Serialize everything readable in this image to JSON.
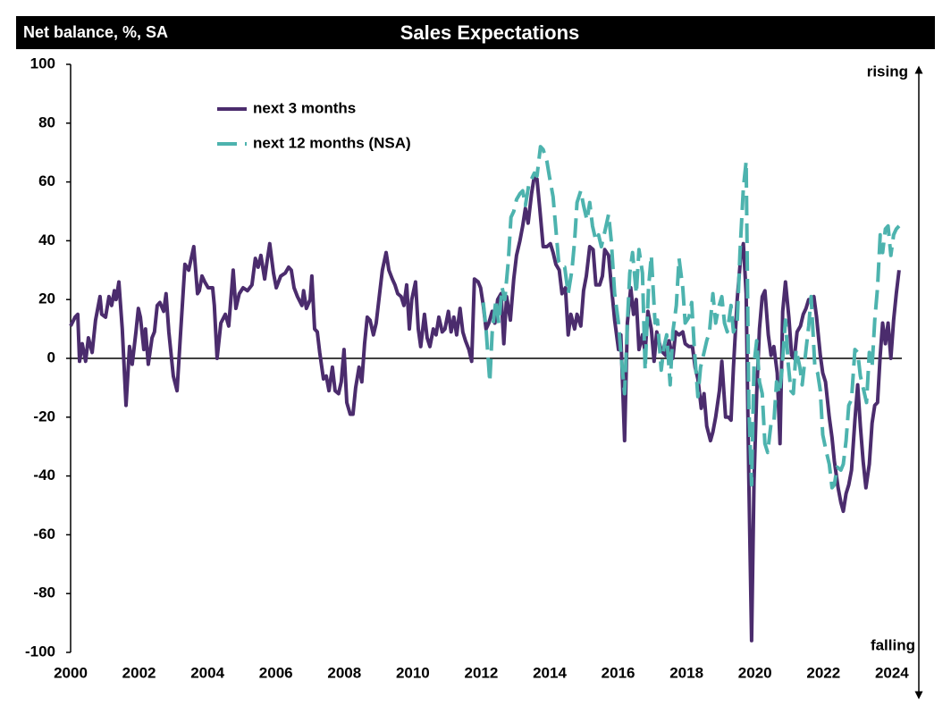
{
  "chart_data": {
    "type": "line",
    "title": "Sales Expectations",
    "ylabel": "Net balance, %, SA",
    "annotations": {
      "top": "rising",
      "bottom": "falling"
    },
    "xlim": [
      2000,
      2024.5
    ],
    "ylim": [
      -100,
      100
    ],
    "xticks": [
      2000,
      2002,
      2004,
      2006,
      2008,
      2010,
      2012,
      2014,
      2016,
      2018,
      2020,
      2022,
      2024
    ],
    "yticks": [
      -100,
      -80,
      -60,
      -40,
      -20,
      0,
      20,
      40,
      60,
      80,
      100
    ],
    "series": [
      {
        "name": "next 3 months",
        "color": "#4b2c6d",
        "dashed": false,
        "x": [
          2000.0,
          2000.13,
          2000.21,
          2000.26,
          2000.34,
          2000.44,
          2000.52,
          2000.63,
          2000.73,
          2000.86,
          2000.91,
          2001.02,
          2001.12,
          2001.2,
          2001.28,
          2001.33,
          2001.41,
          2001.51,
          2001.62,
          2001.72,
          2001.8,
          2001.91,
          2001.98,
          2002.04,
          2002.14,
          2002.19,
          2002.27,
          2002.38,
          2002.45,
          2002.53,
          2002.61,
          2002.72,
          2002.79,
          2002.87,
          2003.0,
          2003.11,
          2003.21,
          2003.34,
          2003.45,
          2003.6,
          2003.71,
          2003.76,
          2003.84,
          2003.92,
          2004.02,
          2004.15,
          2004.2,
          2004.28,
          2004.39,
          2004.52,
          2004.62,
          2004.75,
          2004.83,
          2004.93,
          2005.04,
          2005.17,
          2005.3,
          2005.4,
          2005.48,
          2005.56,
          2005.67,
          2005.74,
          2005.82,
          2005.93,
          2006.01,
          2006.14,
          2006.27,
          2006.37,
          2006.45,
          2006.53,
          2006.63,
          2006.76,
          2006.81,
          2006.89,
          2007.0,
          2007.05,
          2007.13,
          2007.21,
          2007.28,
          2007.39,
          2007.47,
          2007.55,
          2007.65,
          2007.73,
          2007.83,
          2007.91,
          2007.99,
          2008.07,
          2008.17,
          2008.25,
          2008.33,
          2008.43,
          2008.51,
          2008.59,
          2008.67,
          2008.75,
          2008.85,
          2008.93,
          2009.03,
          2009.11,
          2009.22,
          2009.3,
          2009.4,
          2009.48,
          2009.56,
          2009.66,
          2009.74,
          2009.82,
          2009.9,
          2009.97,
          2010.08,
          2010.16,
          2010.23,
          2010.34,
          2010.42,
          2010.5,
          2010.6,
          2010.68,
          2010.76,
          2010.86,
          2010.94,
          2011.04,
          2011.12,
          2011.2,
          2011.28,
          2011.38,
          2011.46,
          2011.54,
          2011.64,
          2011.72,
          2011.8,
          2011.91,
          2011.98,
          2012.06,
          2012.14,
          2012.22,
          2012.32,
          2012.4,
          2012.48,
          2012.58,
          2012.66,
          2012.74,
          2012.85,
          2012.95,
          2013.03,
          2013.13,
          2013.21,
          2013.29,
          2013.37,
          2013.47,
          2013.55,
          2013.63,
          2013.71,
          2013.81,
          2013.92,
          2014.02,
          2014.1,
          2014.18,
          2014.28,
          2014.36,
          2014.46,
          2014.54,
          2014.62,
          2014.73,
          2014.8,
          2014.91,
          2014.99,
          2015.07,
          2015.17,
          2015.27,
          2015.35,
          2015.46,
          2015.54,
          2015.61,
          2015.72,
          2015.8,
          2015.9,
          2016.01,
          2016.08,
          2016.19,
          2016.27,
          2016.37,
          2016.45,
          2016.53,
          2016.61,
          2016.71,
          2016.79,
          2016.87,
          2016.97,
          2017.05,
          2017.13,
          2017.23,
          2017.31,
          2017.39,
          2017.49,
          2017.6,
          2017.68,
          2017.78,
          2017.89,
          2017.96,
          2018.07,
          2018.17,
          2018.25,
          2018.33,
          2018.43,
          2018.51,
          2018.59,
          2018.7,
          2018.77,
          2018.85,
          2018.96,
          2019.03,
          2019.14,
          2019.22,
          2019.3,
          2019.37,
          2019.48,
          2019.58,
          2019.66,
          2019.74,
          2019.82,
          2019.9,
          2019.97,
          2020.05,
          2020.13,
          2020.21,
          2020.29,
          2020.39,
          2020.47,
          2020.55,
          2020.65,
          2020.73,
          2020.81,
          2020.89,
          2020.99,
          2021.07,
          2021.15,
          2021.23,
          2021.33,
          2021.41,
          2021.49,
          2021.57,
          2021.64,
          2021.72,
          2021.8,
          2021.91,
          2021.98,
          2022.06,
          2022.17,
          2022.25,
          2022.32,
          2022.43,
          2022.51,
          2022.58,
          2022.66,
          2022.74,
          2022.82,
          2022.92,
          2023.0,
          2023.08,
          2023.16,
          2023.24,
          2023.34,
          2023.42,
          2023.5,
          2023.58,
          2023.66,
          2023.73,
          2023.81,
          2023.89,
          2023.97,
          2024.05,
          2024.13,
          2024.21
        ],
        "values": [
          11,
          14,
          15,
          -1,
          5,
          -1,
          7,
          2,
          13,
          21,
          15,
          14,
          21,
          18,
          23,
          20,
          26,
          10,
          -16,
          4,
          -2,
          9,
          17,
          14,
          3,
          10,
          -2,
          7,
          9,
          18,
          19,
          16,
          22,
          9,
          -6,
          -11,
          8,
          32,
          30,
          38,
          22,
          23,
          28,
          26,
          24,
          24,
          18,
          0,
          12,
          15,
          11,
          30,
          17,
          22,
          24,
          23,
          25,
          34,
          31,
          35,
          27,
          33,
          39,
          29,
          24,
          28,
          29,
          31,
          30,
          24,
          21,
          18,
          23,
          17,
          20,
          28,
          10,
          9,
          2,
          -7,
          -6,
          -11,
          -3,
          -11,
          -12,
          -8,
          3,
          -15,
          -19,
          -19,
          -10,
          -3,
          -8,
          5,
          14,
          13,
          8,
          12,
          22,
          30,
          36,
          30,
          27,
          25,
          22,
          21,
          18,
          25,
          10,
          20,
          26,
          10,
          4,
          15,
          7,
          4,
          10,
          8,
          14,
          9,
          10,
          16,
          9,
          14,
          8,
          17,
          9,
          6,
          3,
          -1,
          27,
          26,
          24,
          18,
          10,
          12,
          16,
          12,
          20,
          22,
          5,
          21,
          13,
          27,
          35,
          40,
          45,
          51,
          46,
          56,
          62,
          61,
          51,
          38,
          38,
          39,
          36,
          32,
          30,
          22,
          24,
          8,
          15,
          10,
          15,
          11,
          23,
          28,
          38,
          37,
          25,
          25,
          28,
          37,
          35,
          25,
          13,
          3,
          8,
          -28,
          12,
          24,
          15,
          20,
          3,
          8,
          2,
          16,
          10,
          -1,
          9,
          4,
          2,
          1,
          6,
          0,
          9,
          8,
          9,
          5,
          4,
          4,
          -3,
          -7,
          -17,
          -12,
          -23,
          -28,
          -25,
          -20,
          -11,
          -1,
          -20,
          -20,
          -21,
          -3,
          20,
          34,
          39,
          22,
          -41,
          -96,
          -42,
          -12,
          10,
          21,
          23,
          8,
          1,
          4,
          -5,
          -29,
          16,
          26,
          14,
          1,
          0,
          9,
          11,
          15,
          17,
          20,
          20,
          21,
          14,
          1,
          -5,
          -8,
          -20,
          -27,
          -35,
          -44,
          -49,
          -52,
          -46,
          -43,
          -38,
          -21,
          -9,
          -23,
          -35,
          -44,
          -36,
          -22,
          -16,
          -15,
          1,
          12,
          5,
          12,
          0,
          13,
          22,
          30
        ]
      },
      {
        "name": "next 12 months (NSA)",
        "color": "#4db3ae",
        "dashed": true,
        "x": [
          2012.06,
          2012.14,
          2012.25,
          2012.32,
          2012.43,
          2012.51,
          2012.61,
          2012.69,
          2012.79,
          2012.87,
          2012.95,
          2013.03,
          2013.13,
          2013.21,
          2013.29,
          2013.39,
          2013.47,
          2013.55,
          2013.63,
          2013.73,
          2013.81,
          2013.92,
          2013.99,
          2014.1,
          2014.18,
          2014.26,
          2014.36,
          2014.44,
          2014.54,
          2014.65,
          2014.73,
          2014.8,
          2014.91,
          2014.99,
          2015.09,
          2015.17,
          2015.25,
          2015.35,
          2015.43,
          2015.51,
          2015.61,
          2015.72,
          2015.8,
          2015.9,
          2016.01,
          2016.08,
          2016.19,
          2016.27,
          2016.34,
          2016.42,
          2016.53,
          2016.61,
          2016.71,
          2016.79,
          2016.89,
          2016.97,
          2017.08,
          2017.15,
          2017.26,
          2017.34,
          2017.42,
          2017.52,
          2017.6,
          2017.7,
          2017.78,
          2017.89,
          2017.96,
          2018.07,
          2018.15,
          2018.23,
          2018.33,
          2018.41,
          2018.51,
          2018.59,
          2018.67,
          2018.77,
          2018.85,
          2018.93,
          2019.03,
          2019.11,
          2019.19,
          2019.3,
          2019.37,
          2019.48,
          2019.56,
          2019.66,
          2019.74,
          2019.82,
          2019.9,
          2019.97,
          2020.05,
          2020.13,
          2020.21,
          2020.29,
          2020.37,
          2020.47,
          2020.55,
          2020.63,
          2020.71,
          2020.78,
          2020.89,
          2020.97,
          2021.05,
          2021.12,
          2021.2,
          2021.31,
          2021.38,
          2021.49,
          2021.57,
          2021.64,
          2021.75,
          2021.83,
          2021.91,
          2021.98,
          2022.09,
          2022.17,
          2022.25,
          2022.32,
          2022.4,
          2022.51,
          2022.58,
          2022.66,
          2022.74,
          2022.82,
          2022.92,
          2023.0,
          2023.08,
          2023.16,
          2023.26,
          2023.34,
          2023.42,
          2023.5,
          2023.58,
          2023.66,
          2023.73,
          2023.81,
          2023.89,
          2023.97,
          2024.05,
          2024.13,
          2024.21
        ],
        "values": [
          19,
          10,
          -8,
          9,
          20,
          12,
          24,
          20,
          33,
          48,
          50,
          54,
          56,
          57,
          52,
          59,
          61,
          63,
          62,
          72,
          71,
          67,
          62,
          55,
          44,
          33,
          31,
          31,
          22,
          30,
          40,
          53,
          57,
          52,
          47,
          53,
          45,
          40,
          42,
          38,
          43,
          49,
          40,
          22,
          12,
          2,
          -12,
          12,
          29,
          36,
          22,
          37,
          29,
          -4,
          24,
          35,
          12,
          13,
          -4,
          4,
          8,
          -9,
          9,
          18,
          34,
          24,
          12,
          14,
          19,
          3,
          -13,
          -3,
          2,
          6,
          9,
          22,
          12,
          17,
          21,
          12,
          9,
          18,
          9,
          12,
          36,
          58,
          67,
          -16,
          -43,
          -2,
          6,
          -8,
          -12,
          -29,
          -32,
          -22,
          -22,
          -8,
          -12,
          -5,
          13,
          -2,
          -11,
          -12,
          3,
          -3,
          -9,
          3,
          11,
          21,
          -3,
          -5,
          -11,
          -26,
          -32,
          -36,
          -44,
          -43,
          -37,
          -38,
          -36,
          -28,
          -16,
          -14,
          3,
          2,
          -6,
          -10,
          -15,
          2,
          -3,
          13,
          24,
          42,
          36,
          44,
          45,
          35,
          42,
          44,
          45
        ]
      }
    ]
  }
}
